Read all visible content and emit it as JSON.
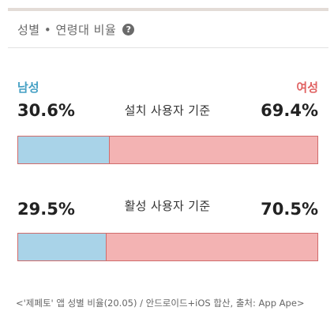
{
  "header": {
    "title": "성별 • 연령대 비율",
    "help_icon": "?"
  },
  "legend": {
    "male": "남성",
    "female": "여성"
  },
  "rows": [
    {
      "label": "설치 사용자 기준",
      "male": "30.6%",
      "female": "69.4%",
      "male_share": 30.6,
      "female_share": 69.4
    },
    {
      "label": "활성 사용자 기준",
      "male": "29.5%",
      "female": "70.5%",
      "male_share": 29.5,
      "female_share": 70.5
    }
  ],
  "colors": {
    "male": "#a9d3e8",
    "female": "#f3b3b3",
    "male_text": "#45a0c4",
    "female_text": "#e06262"
  },
  "footnote": "<'제페토' 앱 성별 비율(20.05) / 안드로이드+iOS 합산, 출처: App Ape>"
}
